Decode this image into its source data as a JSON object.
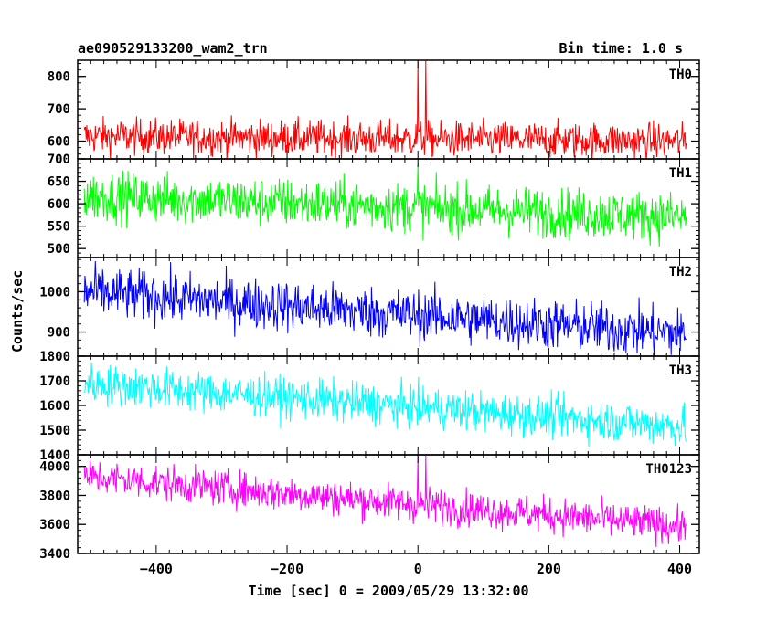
{
  "header": {
    "title": "ae090529133200_wam2_trn",
    "bin_time": "Bin time: 1.0 s"
  },
  "axes": {
    "xlabel": "Time [sec] 0 = 2009/05/29 13:32:00",
    "ylabel": "Counts/sec"
  },
  "chart_data": {
    "type": "line",
    "x_range": [
      -510,
      410
    ],
    "xlim": [
      -520,
      430
    ],
    "x_ticks": [
      -400,
      -200,
      0,
      200,
      400
    ],
    "grid": false,
    "panels": [
      {
        "name": "TH0",
        "color": "#ff0000",
        "ylim": [
          545,
          850
        ],
        "yticks": [
          600,
          700,
          800
        ],
        "trend": [
          [
            -510,
            615
          ],
          [
            410,
            600
          ]
        ],
        "noise": 28,
        "spike": {
          "x": [
            0,
            12
          ],
          "y": 850
        }
      },
      {
        "name": "TH1",
        "color": "#00ff00",
        "ylim": [
          480,
          700
        ],
        "yticks": [
          500,
          550,
          600,
          650,
          700
        ],
        "trend": [
          [
            -510,
            618
          ],
          [
            410,
            570
          ]
        ],
        "noise": 28,
        "spike": {
          "x": [
            0
          ],
          "y": 690
        }
      },
      {
        "name": "TH2",
        "color": "#0000ff",
        "ylim": [
          840,
          1085
        ],
        "yticks": [
          900,
          1000
        ],
        "trend": [
          [
            -510,
            1000
          ],
          [
            410,
            895
          ]
        ],
        "noise": 32,
        "spike": null
      },
      {
        "name": "TH3",
        "color": "#00ffff",
        "ylim": [
          1400,
          1800
        ],
        "yticks": [
          1400,
          1500,
          1600,
          1700,
          1800
        ],
        "trend": [
          [
            -510,
            1690
          ],
          [
            410,
            1515
          ]
        ],
        "noise": 42,
        "spike": null
      },
      {
        "name": "TH0123",
        "color": "#ff00ff",
        "ylim": [
          3400,
          4080
        ],
        "yticks": [
          3400,
          3600,
          3800,
          4000
        ],
        "trend": [
          [
            -510,
            3930
          ],
          [
            410,
            3585
          ]
        ],
        "noise": 62,
        "spike": {
          "x": [
            0,
            12
          ],
          "y": 4080
        }
      }
    ]
  }
}
